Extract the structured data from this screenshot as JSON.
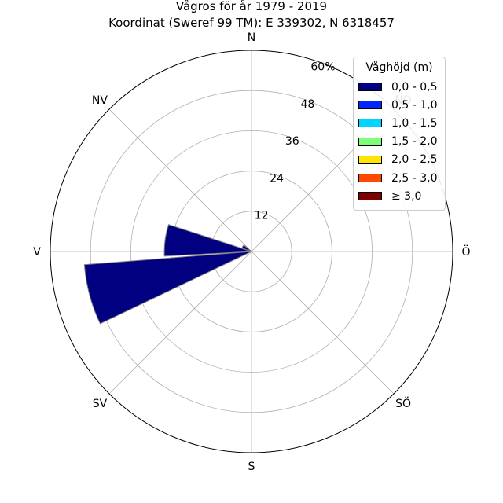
{
  "chart_data": {
    "type": "windrose",
    "title": "Vågros för år 1979 - 2019",
    "subtitle": "Koordinat (Sweref 99 TM): E 339302, N 6318457",
    "directions": [
      "N",
      "NV",
      "V",
      "SV",
      "S",
      "SÖ",
      "Ö",
      "NÖ"
    ],
    "radial_ticks": [
      "12",
      "24",
      "36",
      "48",
      "60%"
    ],
    "radial_max": 60,
    "legend": {
      "title": "Våghöjd (m)",
      "placement": "top-right",
      "bins": [
        {
          "label": "0,0 - 0,5",
          "color": "#000080"
        },
        {
          "label": "0,5 - 1,0",
          "color": "#0028ff"
        },
        {
          "label": "1,0 - 1,5",
          "color": "#00d4ff"
        },
        {
          "label": "1,5 - 2,0",
          "color": "#7dff7a"
        },
        {
          "label": "2,0 - 2,5",
          "color": "#ffe500"
        },
        {
          "label": "2,5 - 3,0",
          "color": "#ff4800"
        },
        {
          "label": "≥ 3,0",
          "color": "#800000"
        }
      ]
    },
    "sectors": [
      {
        "direction_deg": 255,
        "bin": "0,0 - 0,5",
        "value": 50
      },
      {
        "direction_deg": 277.5,
        "bin": "0,0 - 0,5",
        "value": 26
      },
      {
        "direction_deg": 300,
        "bin": "0,0 - 0,5",
        "value": 3
      }
    ],
    "grid": true
  }
}
